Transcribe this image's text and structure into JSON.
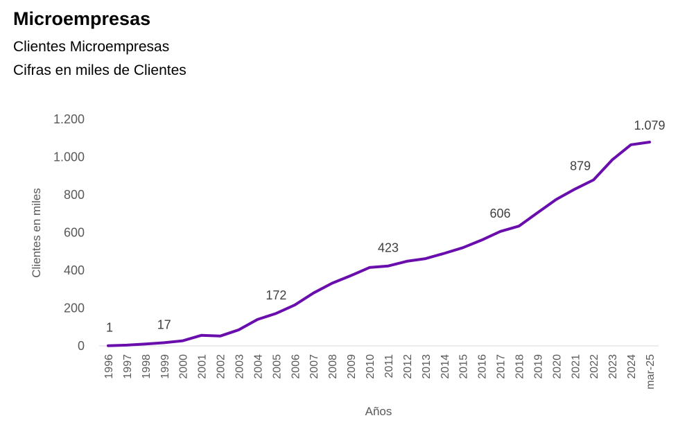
{
  "header": {
    "title": "Microempresas",
    "subtitle": "Clientes Microempresas",
    "note": "Cifras en miles de Clientes"
  },
  "colors": {
    "line": "#6a0dad",
    "axis": "#d9d9d9",
    "text": "#595959"
  },
  "chart_data": {
    "type": "line",
    "title": "Microempresas",
    "xlabel": "Años",
    "ylabel": "Clientes en miles",
    "ylim": [
      0,
      1200
    ],
    "yticks": [
      0,
      200,
      400,
      600,
      800,
      1000,
      1200
    ],
    "ytick_labels": [
      "0",
      "200",
      "400",
      "600",
      "800",
      "1.000",
      "1.200"
    ],
    "grid": false,
    "legend": "none",
    "categories": [
      "1996",
      "1997",
      "1998",
      "1999",
      "2000",
      "2001",
      "2002",
      "2003",
      "2004",
      "2005",
      "2006",
      "2007",
      "2008",
      "2009",
      "2010",
      "2011",
      "2012",
      "2013",
      "2014",
      "2015",
      "2016",
      "2017",
      "2018",
      "2019",
      "2020",
      "2021",
      "2022",
      "2023",
      "2024",
      "mar-25"
    ],
    "series": [
      {
        "name": "Clientes Microempresas",
        "values": [
          1,
          4,
          10,
          17,
          27,
          56,
          52,
          85,
          140,
          172,
          217,
          280,
          332,
          372,
          415,
          423,
          448,
          462,
          490,
          520,
          560,
          606,
          634,
          705,
          775,
          830,
          879,
          985,
          1065,
          1079
        ]
      }
    ],
    "data_labels": [
      {
        "category": "1996",
        "text": "1"
      },
      {
        "category": "1999",
        "text": "17"
      },
      {
        "category": "2005",
        "text": "172"
      },
      {
        "category": "2011",
        "text": "423"
      },
      {
        "category": "2017",
        "text": "606"
      },
      {
        "category": "2022",
        "text": "879"
      },
      {
        "category": "mar-25",
        "text": "1.079"
      }
    ]
  }
}
